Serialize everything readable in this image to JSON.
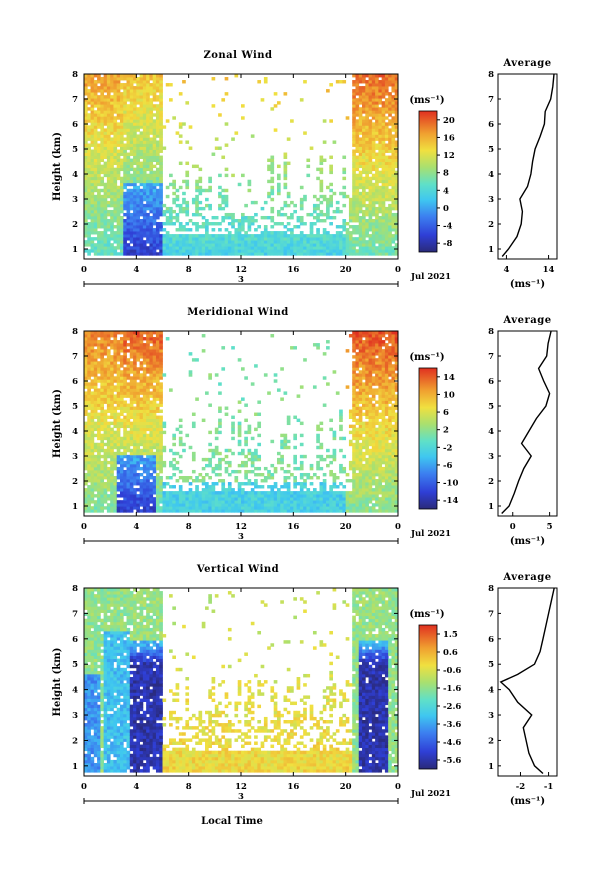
{
  "chart_data": [
    {
      "type": "heatmap",
      "title": "Zonal Wind",
      "xlabel": "",
      "ylabel": "Height (km)",
      "x_ticks": [
        "0",
        "4",
        "8",
        "12",
        "16",
        "20",
        "0"
      ],
      "y_ticks": [
        "1",
        "2",
        "3",
        "4",
        "5",
        "6",
        "7",
        "8"
      ],
      "xlim": [
        0,
        24
      ],
      "ylim": [
        0.6,
        8
      ],
      "date_day": "3",
      "date_label": "Jul 2021",
      "colorbar_unit": "(ms⁻¹)",
      "colorbar_ticks": [
        "-8",
        "-4",
        "0",
        "4",
        "8",
        "12",
        "16",
        "20"
      ],
      "colorbar_range": [
        -10,
        22
      ],
      "profile": {
        "title": "Average",
        "xlabel": "(ms⁻¹)",
        "x_ticks": [
          "4",
          "14"
        ],
        "xlim": [
          2,
          16
        ],
        "height": [
          0.7,
          1,
          1.5,
          2,
          2.5,
          3,
          3.5,
          4,
          4.5,
          5,
          5.5,
          6,
          6.5,
          7,
          7.5,
          8
        ],
        "value": [
          3,
          4.5,
          6.5,
          7.5,
          7.8,
          7.2,
          9,
          9.8,
          10.2,
          10.8,
          12,
          13,
          13.2,
          14.5,
          15,
          15.3
        ]
      }
    },
    {
      "type": "heatmap",
      "title": "Meridional Wind",
      "xlabel": "",
      "ylabel": "Height (km)",
      "x_ticks": [
        "0",
        "4",
        "8",
        "12",
        "16",
        "20",
        "0"
      ],
      "y_ticks": [
        "1",
        "2",
        "3",
        "4",
        "5",
        "6",
        "7",
        "8"
      ],
      "xlim": [
        0,
        24
      ],
      "ylim": [
        0.6,
        8
      ],
      "date_day": "3",
      "date_label": "Jul 2021",
      "colorbar_unit": "(ms⁻¹)",
      "colorbar_ticks": [
        "-14",
        "-10",
        "-6",
        "-2",
        "2",
        "6",
        "10",
        "14"
      ],
      "colorbar_range": [
        -16,
        16
      ],
      "profile": {
        "title": "Average",
        "xlabel": "(ms⁻¹)",
        "x_ticks": [
          "0",
          "5"
        ],
        "xlim": [
          -2,
          6
        ],
        "height": [
          0.7,
          1,
          1.5,
          2,
          2.5,
          3,
          3.5,
          4,
          4.5,
          5,
          5.5,
          6,
          6.5,
          7,
          7.5,
          8
        ],
        "value": [
          -1.5,
          -0.5,
          0.2,
          0.8,
          1.5,
          2.5,
          1.2,
          2.2,
          3.2,
          4.5,
          5,
          4.2,
          3.5,
          4.6,
          4.8,
          5.2
        ]
      }
    },
    {
      "type": "heatmap",
      "title": "Vertical Wind",
      "xlabel": "Local Time",
      "ylabel": "Height (km)",
      "x_ticks": [
        "0",
        "4",
        "8",
        "12",
        "16",
        "20",
        "0"
      ],
      "y_ticks": [
        "1",
        "2",
        "3",
        "4",
        "5",
        "6",
        "7",
        "8"
      ],
      "xlim": [
        0,
        24
      ],
      "ylim": [
        0.6,
        8
      ],
      "date_day": "3",
      "date_label": "Jul 2021",
      "colorbar_unit": "(ms⁻¹)",
      "colorbar_ticks": [
        "-5.6",
        "-4.6",
        "-3.6",
        "-2.6",
        "-1.6",
        "-0.6",
        "0.6",
        "1.5"
      ],
      "colorbar_range": [
        -6.0,
        1.8
      ],
      "profile": {
        "title": "Average",
        "xlabel": "(ms⁻¹)",
        "x_ticks": [
          "-2",
          "-1"
        ],
        "xlim": [
          -2.8,
          -0.7
        ],
        "height": [
          0.7,
          1,
          1.5,
          2,
          2.5,
          3,
          3.5,
          4,
          4.3,
          4.6,
          5,
          5.5,
          6,
          6.5,
          7,
          7.5,
          8
        ],
        "value": [
          -1.2,
          -1.5,
          -1.7,
          -1.8,
          -1.9,
          -1.6,
          -2.1,
          -2.4,
          -2.7,
          -2.1,
          -1.5,
          -1.3,
          -1.2,
          -1.1,
          -1.0,
          -0.9,
          -0.8
        ]
      }
    }
  ]
}
